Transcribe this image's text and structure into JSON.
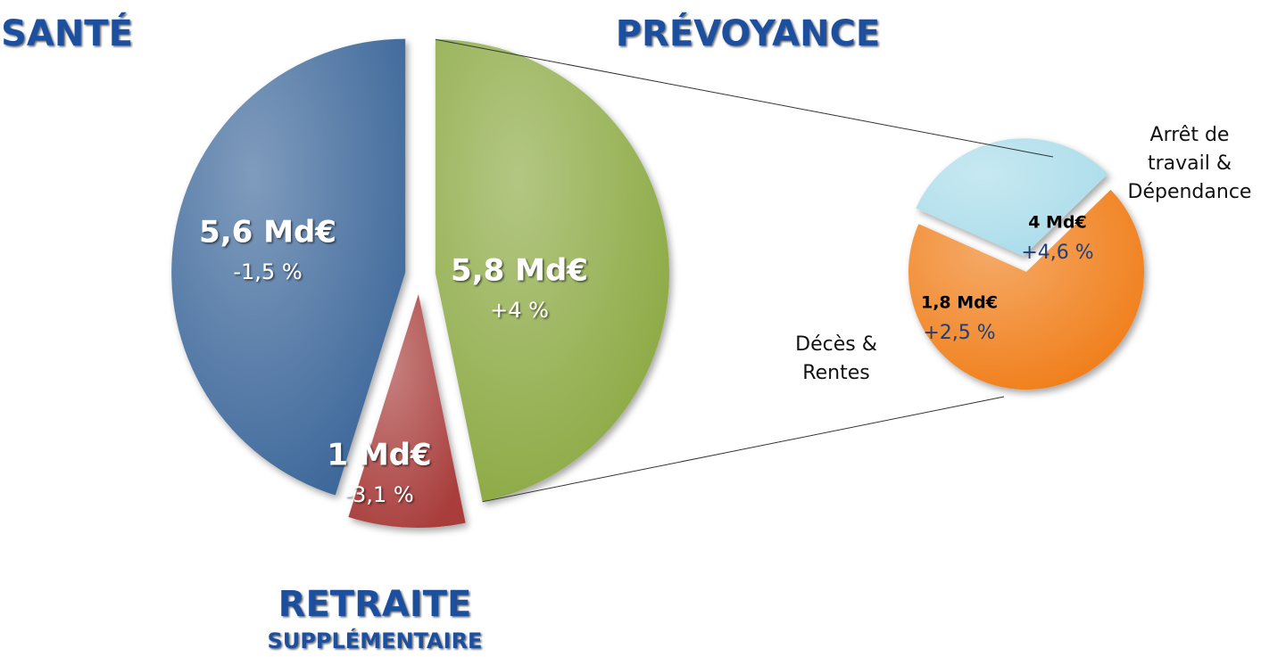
{
  "chart_data": {
    "type": "pie-of-pie",
    "categories": [
      [
        "SANTÉ"
      ],
      [
        "PRÉVOYANCE"
      ],
      [
        "RETRAITE",
        "SUPPLÉMENTAIRE"
      ]
    ],
    "values": [
      5.6,
      5.8,
      1
    ],
    "value_labels": [
      "5,6 Md€",
      "5,8 Md€",
      "1 Md€"
    ],
    "changes": [
      -1.5,
      4,
      -3.1
    ],
    "change_labels": [
      "-1,5 %",
      "+4 %",
      "-3,1 %"
    ],
    "colors": [
      "#3b6699",
      "#8aa841",
      "#a83e3b"
    ],
    "breakdown": {
      "of": 1,
      "categories": [
        [
          "Arrêt de",
          "travail &",
          "Dépendance"
        ],
        [
          "Décès &",
          "Rentes"
        ]
      ],
      "values": [
        4,
        1.8
      ],
      "value_labels": [
        "4 Md€",
        "1,8 Md€"
      ],
      "changes": [
        4.6,
        2.5
      ],
      "change_labels": [
        "+4,6 %",
        "+2,5 %"
      ],
      "colors": [
        "#f07b12",
        "#a9dcea"
      ]
    }
  }
}
